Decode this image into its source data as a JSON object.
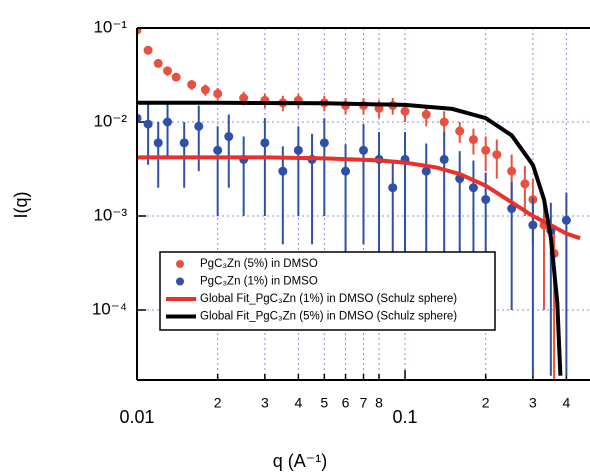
{
  "chart_data": {
    "type": "scatter",
    "x_label": "q (A⁻¹)",
    "y_label": "I(q)",
    "x_log": true,
    "y_log": true,
    "grid": true,
    "legend": "bottom-left",
    "xlim": [
      0.01,
      0.49
    ],
    "ylim": [
      1.8e-05,
      0.1
    ],
    "xticks": [
      0.01,
      {
        "value": 0.02,
        "label": "2"
      },
      {
        "value": 0.03,
        "label": "3"
      },
      {
        "value": 0.04,
        "label": "4"
      },
      {
        "value": 0.05,
        "label": "5"
      },
      {
        "value": 0.06,
        "label": "6"
      },
      {
        "value": 0.07,
        "label": "7"
      },
      {
        "value": 0.08,
        "label": "8"
      },
      0.1,
      {
        "value": 0.2,
        "label": "2"
      },
      {
        "value": 0.3,
        "label": "3"
      },
      {
        "value": 0.4,
        "label": "4"
      }
    ],
    "yticks": [
      {
        "value": 0.1,
        "label": "10⁻¹"
      },
      {
        "value": 0.01,
        "label": "10⁻²"
      },
      {
        "value": 0.001,
        "label": "10⁻³"
      },
      {
        "value": 0.0001,
        "label": "10⁻⁴"
      }
    ],
    "series": [
      {
        "name": "PgC₃Zn (5%) in DMSO",
        "color": "#e8503f",
        "style": "markers",
        "x": [
          0.01,
          0.011,
          0.012,
          0.013,
          0.014,
          0.016,
          0.018,
          0.02,
          0.025,
          0.03,
          0.035,
          0.04,
          0.05,
          0.06,
          0.07,
          0.08,
          0.09,
          0.1,
          0.12,
          0.14,
          0.16,
          0.18,
          0.2,
          0.22,
          0.25,
          0.28,
          0.3,
          0.33,
          0.36
        ],
        "values": [
          0.095,
          0.058,
          0.042,
          0.035,
          0.03,
          0.025,
          0.022,
          0.02,
          0.018,
          0.017,
          0.016,
          0.017,
          0.016,
          0.015,
          0.015,
          0.014,
          0.015,
          0.013,
          0.012,
          0.01,
          0.008,
          0.0065,
          0.005,
          0.0045,
          0.003,
          0.0022,
          0.0015,
          0.0008,
          0.0004
        ],
        "errors": [
          0.005,
          0.005,
          0.004,
          0.004,
          0.003,
          0.003,
          0.003,
          0.003,
          0.003,
          0.003,
          0.003,
          0.003,
          0.003,
          0.003,
          0.003,
          0.003,
          0.003,
          0.003,
          0.003,
          0.003,
          0.002,
          0.002,
          0.002,
          0.002,
          0.0015,
          0.0012,
          0.001,
          0.0007,
          0.0004
        ]
      },
      {
        "name": "PgC₃Zn (1%) in DMSO",
        "color": "#2f4fa8",
        "style": "markers",
        "x": [
          0.01,
          0.011,
          0.012,
          0.013,
          0.015,
          0.017,
          0.02,
          0.022,
          0.025,
          0.03,
          0.035,
          0.04,
          0.045,
          0.05,
          0.06,
          0.07,
          0.08,
          0.09,
          0.1,
          0.12,
          0.14,
          0.16,
          0.18,
          0.2,
          0.25,
          0.3,
          0.35,
          0.4
        ],
        "values": [
          0.011,
          0.0095,
          0.006,
          0.01,
          0.006,
          0.009,
          0.005,
          0.007,
          0.004,
          0.006,
          0.003,
          0.005,
          0.004,
          0.006,
          0.003,
          0.005,
          0.004,
          0.002,
          0.004,
          0.003,
          0.004,
          0.0025,
          0.002,
          0.0015,
          0.0012,
          0.0008,
          0.0007,
          0.0009
        ],
        "errors": [
          0.006,
          0.006,
          0.004,
          0.006,
          0.004,
          0.006,
          0.004,
          0.005,
          0.003,
          0.005,
          0.0025,
          0.004,
          0.0035,
          0.005,
          0.0028,
          0.0045,
          0.0038,
          0.0019,
          0.0038,
          0.0029,
          0.0038,
          0.0024,
          0.0019,
          0.0014,
          0.0011,
          0.00078,
          0.00068,
          0.00088
        ]
      },
      {
        "name": "Global Fit_PgC₃Zn (1%) in DMSO (Schulz sphere)",
        "color": "#e8312a",
        "style": "line",
        "x": [
          0.01,
          0.03,
          0.05,
          0.08,
          0.1,
          0.13,
          0.16,
          0.2,
          0.25,
          0.3,
          0.35,
          0.4,
          0.45
        ],
        "values": [
          0.0042,
          0.0042,
          0.0041,
          0.0039,
          0.0037,
          0.0033,
          0.0028,
          0.0021,
          0.0014,
          0.001,
          0.0008,
          0.00065,
          0.00058
        ]
      },
      {
        "name": "Global Fit_PgC₃Zn (5%) in DMSO (Schulz sphere)",
        "color": "#000000",
        "style": "line",
        "x": [
          0.01,
          0.02,
          0.05,
          0.1,
          0.15,
          0.2,
          0.25,
          0.3,
          0.33,
          0.35,
          0.37,
          0.38
        ],
        "values": [
          0.016,
          0.016,
          0.0158,
          0.0152,
          0.0138,
          0.011,
          0.0072,
          0.0035,
          0.0015,
          0.0006,
          0.00012,
          2e-05
        ]
      }
    ]
  }
}
